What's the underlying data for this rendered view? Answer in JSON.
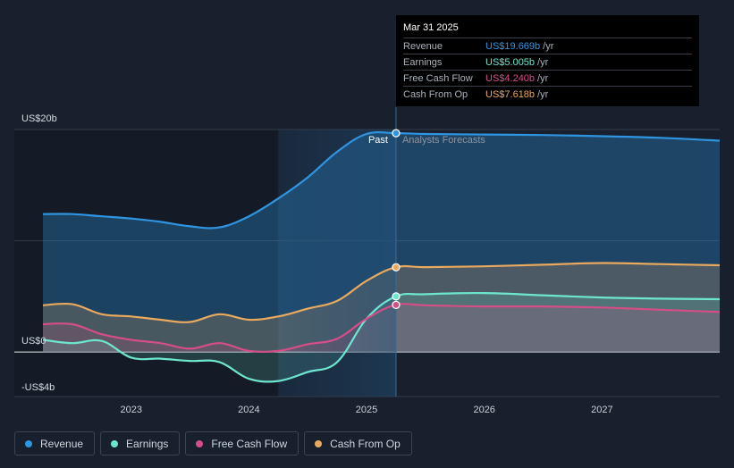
{
  "colors": {
    "revenue": "#2f95e0",
    "earnings": "#6ee6cf",
    "fcf": "#d44e87",
    "cfo": "#e9a95e",
    "background": "#18202d"
  },
  "tooltip": {
    "date": "Mar 31 2025",
    "rows": [
      {
        "label": "Revenue",
        "value": "US$19.669b",
        "unit": "/yr",
        "color": "#2f95e0"
      },
      {
        "label": "Earnings",
        "value": "US$5.005b",
        "unit": "/yr",
        "color": "#6ee6cf"
      },
      {
        "label": "Free Cash Flow",
        "value": "US$4.240b",
        "unit": "/yr",
        "color": "#d44e87"
      },
      {
        "label": "Cash From Op",
        "value": "US$7.618b",
        "unit": "/yr",
        "color": "#e9a95e"
      }
    ]
  },
  "legend": [
    {
      "label": "Revenue",
      "color": "#2f95e0"
    },
    {
      "label": "Earnings",
      "color": "#6ee6cf"
    },
    {
      "label": "Free Cash Flow",
      "color": "#d44e87"
    },
    {
      "label": "Cash From Op",
      "color": "#e9a95e"
    }
  ],
  "chart_data": {
    "type": "line",
    "title": "",
    "xlabel": "",
    "ylabel": "",
    "unit": "US$ billions",
    "ylim": [
      -4,
      20
    ],
    "xlim": [
      2022.25,
      2028.0
    ],
    "y_tick_labels": [
      {
        "value": 20,
        "label": "US$20b"
      },
      {
        "value": 0,
        "label": "US$0"
      },
      {
        "value": -4,
        "label": "-US$4b"
      }
    ],
    "x_tick_labels": [
      {
        "value": 2023,
        "label": "2023"
      },
      {
        "value": 2024,
        "label": "2024"
      },
      {
        "value": 2025,
        "label": "2025"
      },
      {
        "value": 2026,
        "label": "2026"
      },
      {
        "value": 2027,
        "label": "2027"
      }
    ],
    "past_label": "Past",
    "forecast_label": "Analysts Forecasts",
    "divider_x": 2025.25,
    "shaded_start": 2024.25,
    "series": [
      {
        "name": "Revenue",
        "key": "revenue",
        "points": [
          [
            2022.25,
            12.4
          ],
          [
            2022.5,
            12.4
          ],
          [
            2022.75,
            12.2
          ],
          [
            2023.0,
            12.0
          ],
          [
            2023.25,
            11.7
          ],
          [
            2023.5,
            11.3
          ],
          [
            2023.75,
            11.2
          ],
          [
            2024.0,
            12.2
          ],
          [
            2024.25,
            13.8
          ],
          [
            2024.5,
            15.7
          ],
          [
            2024.75,
            18.0
          ],
          [
            2025.0,
            19.6
          ],
          [
            2025.25,
            19.67
          ],
          [
            2025.5,
            19.6
          ],
          [
            2026.0,
            19.55
          ],
          [
            2026.5,
            19.5
          ],
          [
            2027.0,
            19.4
          ],
          [
            2027.5,
            19.25
          ],
          [
            2028.0,
            19.0
          ]
        ]
      },
      {
        "name": "Earnings",
        "key": "earnings",
        "points": [
          [
            2022.25,
            1.1
          ],
          [
            2022.5,
            0.8
          ],
          [
            2022.75,
            1.0
          ],
          [
            2023.0,
            -0.5
          ],
          [
            2023.25,
            -0.6
          ],
          [
            2023.5,
            -0.8
          ],
          [
            2023.75,
            -0.9
          ],
          [
            2024.0,
            -2.4
          ],
          [
            2024.25,
            -2.6
          ],
          [
            2024.5,
            -1.8
          ],
          [
            2024.75,
            -0.9
          ],
          [
            2025.0,
            3.0
          ],
          [
            2025.25,
            5.0
          ],
          [
            2025.5,
            5.2
          ],
          [
            2026.0,
            5.3
          ],
          [
            2026.5,
            5.1
          ],
          [
            2027.0,
            4.9
          ],
          [
            2027.5,
            4.8
          ],
          [
            2028.0,
            4.75
          ]
        ]
      },
      {
        "name": "Free Cash Flow",
        "key": "fcf",
        "points": [
          [
            2022.25,
            2.5
          ],
          [
            2022.5,
            2.5
          ],
          [
            2022.75,
            1.6
          ],
          [
            2023.0,
            1.1
          ],
          [
            2023.25,
            0.8
          ],
          [
            2023.5,
            0.3
          ],
          [
            2023.75,
            0.8
          ],
          [
            2024.0,
            0.1
          ],
          [
            2024.25,
            0.1
          ],
          [
            2024.5,
            0.7
          ],
          [
            2024.75,
            1.2
          ],
          [
            2025.0,
            3.0
          ],
          [
            2025.25,
            4.24
          ],
          [
            2025.5,
            4.2
          ],
          [
            2026.0,
            4.1
          ],
          [
            2026.5,
            4.1
          ],
          [
            2027.0,
            4.0
          ],
          [
            2027.5,
            3.8
          ],
          [
            2028.0,
            3.6
          ]
        ]
      },
      {
        "name": "Cash From Op",
        "key": "cfo",
        "points": [
          [
            2022.25,
            4.2
          ],
          [
            2022.5,
            4.3
          ],
          [
            2022.75,
            3.4
          ],
          [
            2023.0,
            3.2
          ],
          [
            2023.25,
            2.9
          ],
          [
            2023.5,
            2.7
          ],
          [
            2023.75,
            3.4
          ],
          [
            2024.0,
            2.9
          ],
          [
            2024.25,
            3.2
          ],
          [
            2024.5,
            3.9
          ],
          [
            2024.75,
            4.6
          ],
          [
            2025.0,
            6.4
          ],
          [
            2025.25,
            7.62
          ],
          [
            2025.5,
            7.63
          ],
          [
            2026.0,
            7.7
          ],
          [
            2026.5,
            7.85
          ],
          [
            2027.0,
            8.0
          ],
          [
            2027.5,
            7.9
          ],
          [
            2028.0,
            7.8
          ]
        ]
      }
    ]
  }
}
